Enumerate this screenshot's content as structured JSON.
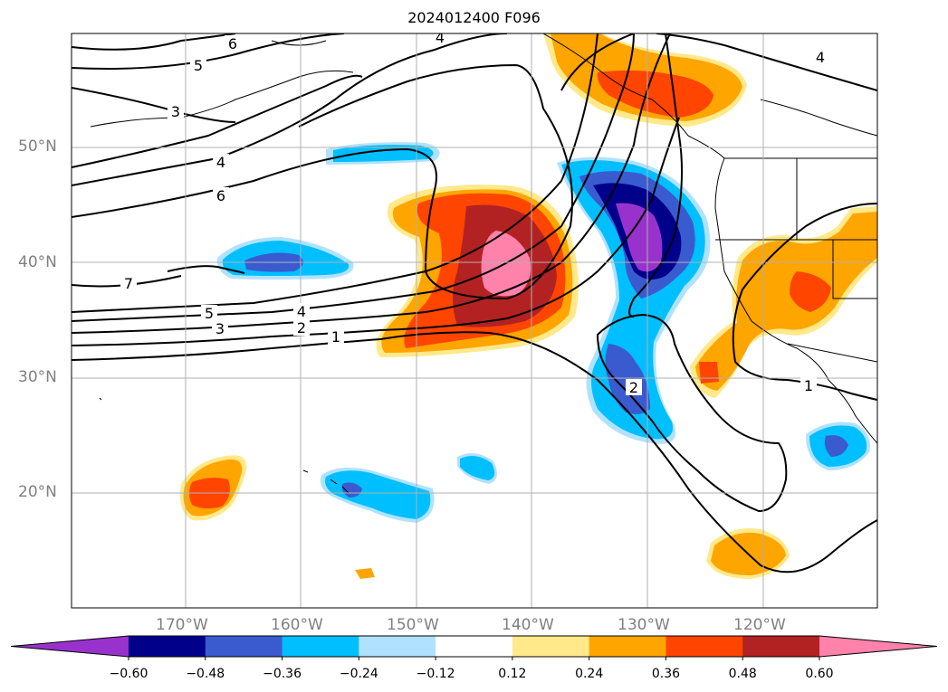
{
  "title": "2024012400 F096",
  "lat_labels": [
    "50°N",
    "40°N",
    "30°N",
    "20°N"
  ],
  "lon_labels": [
    "170°W",
    "160°W",
    "150°W",
    "140°W",
    "130°W",
    "120°W"
  ],
  "colorbar": {
    "ticks": [
      "−0.60",
      "−0.48",
      "−0.36",
      "−0.24",
      "−0.12",
      "0.12",
      "0.24",
      "0.36",
      "0.48",
      "0.60"
    ],
    "colors": [
      "#9932cc",
      "#00008b",
      "#3a5bd0",
      "#00bfff",
      "#b0e2ff",
      "#ffffff",
      "#ffe98a",
      "#ffa500",
      "#ff4500",
      "#b22222",
      "#ff82ab"
    ]
  },
  "contour_labels": [
    "6",
    "5",
    "3",
    "4",
    "6",
    "7",
    "5",
    "3",
    "4",
    "2",
    "1",
    "4",
    "4",
    "2",
    "1"
  ]
}
